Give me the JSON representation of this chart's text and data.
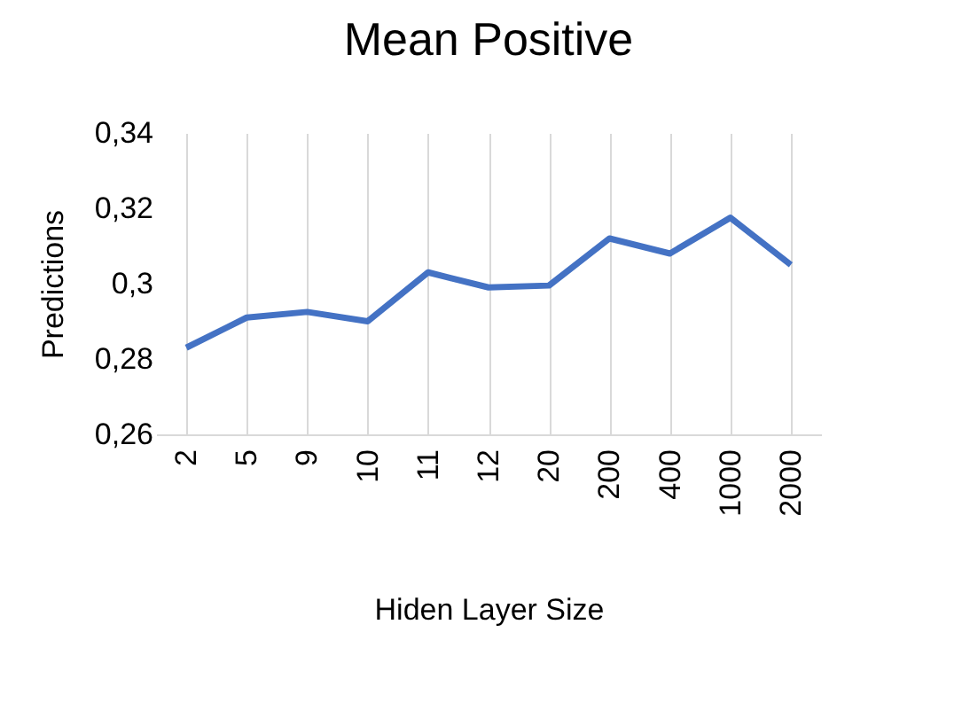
{
  "chart_data": {
    "type": "line",
    "title": "Mean Positive",
    "xlabel": "Hiden Layer Size",
    "ylabel": "Predictions",
    "categories": [
      "2",
      "5",
      "9",
      "10",
      "11",
      "12",
      "20",
      "200",
      "400",
      "1000",
      "2000"
    ],
    "series": [
      {
        "color": "#4472c4",
        "values": [
          0.283,
          0.291,
          0.2925,
          0.29,
          0.303,
          0.299,
          0.2995,
          0.312,
          0.308,
          0.3175,
          0.305
        ]
      }
    ],
    "ylim": [
      0.26,
      0.34
    ],
    "yticks": [
      {
        "value": 0.26,
        "label": "0,26"
      },
      {
        "value": 0.28,
        "label": "0,28"
      },
      {
        "value": 0.3,
        "label": "0,3"
      },
      {
        "value": 0.32,
        "label": "0,32"
      },
      {
        "value": 0.34,
        "label": "0,34"
      }
    ],
    "grid": "x",
    "marker": "none",
    "line_style": "solid",
    "legend": false
  }
}
